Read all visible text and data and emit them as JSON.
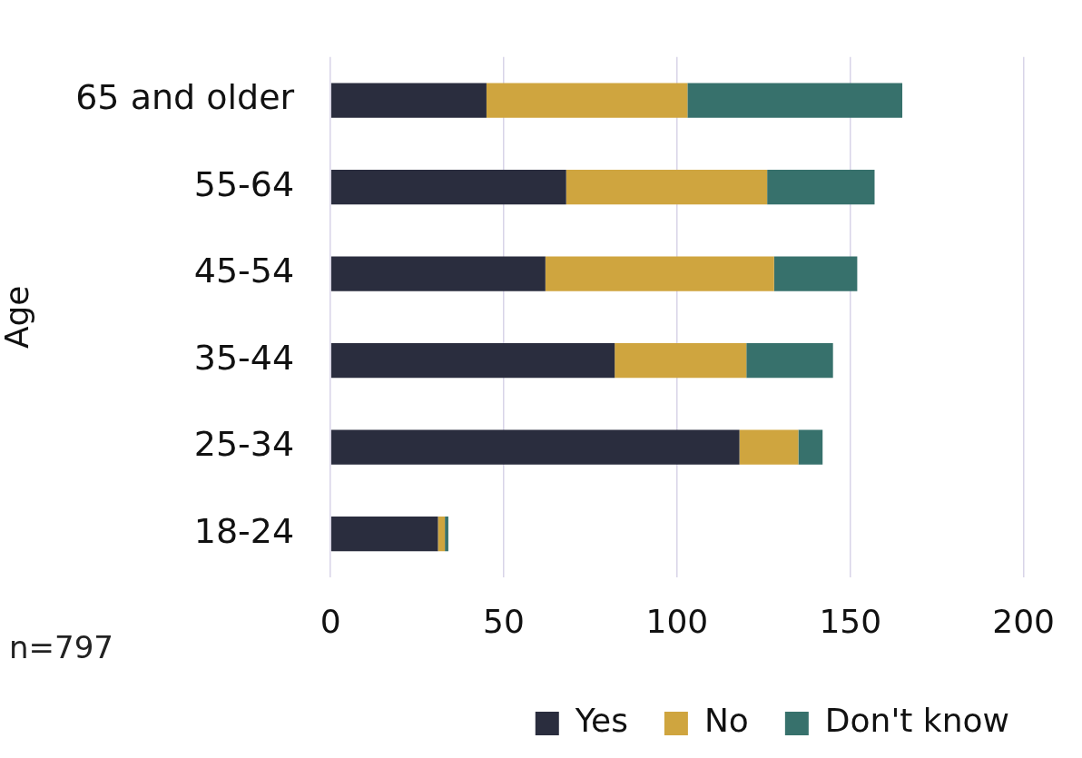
{
  "chart_data": {
    "type": "bar",
    "orientation": "horizontal",
    "stacked": true,
    "ylabel": "Age",
    "categories": [
      "65 and older",
      "55-64",
      "45-54",
      "35-44",
      "25-34",
      "18-24"
    ],
    "series": [
      {
        "name": "Yes",
        "color": "#2a2d3e",
        "values": [
          45,
          68,
          62,
          82,
          118,
          31
        ]
      },
      {
        "name": "No",
        "color": "#cfa53f",
        "values": [
          58,
          58,
          66,
          38,
          17,
          2
        ]
      },
      {
        "name": "Don't know",
        "color": "#37716c",
        "values": [
          62,
          31,
          24,
          25,
          7,
          1
        ]
      }
    ],
    "xlim": [
      0,
      200
    ],
    "xticks": [
      0,
      50,
      100,
      150,
      200
    ],
    "grid": "x",
    "legend": "bottom",
    "annotations": [
      "n=797"
    ]
  }
}
